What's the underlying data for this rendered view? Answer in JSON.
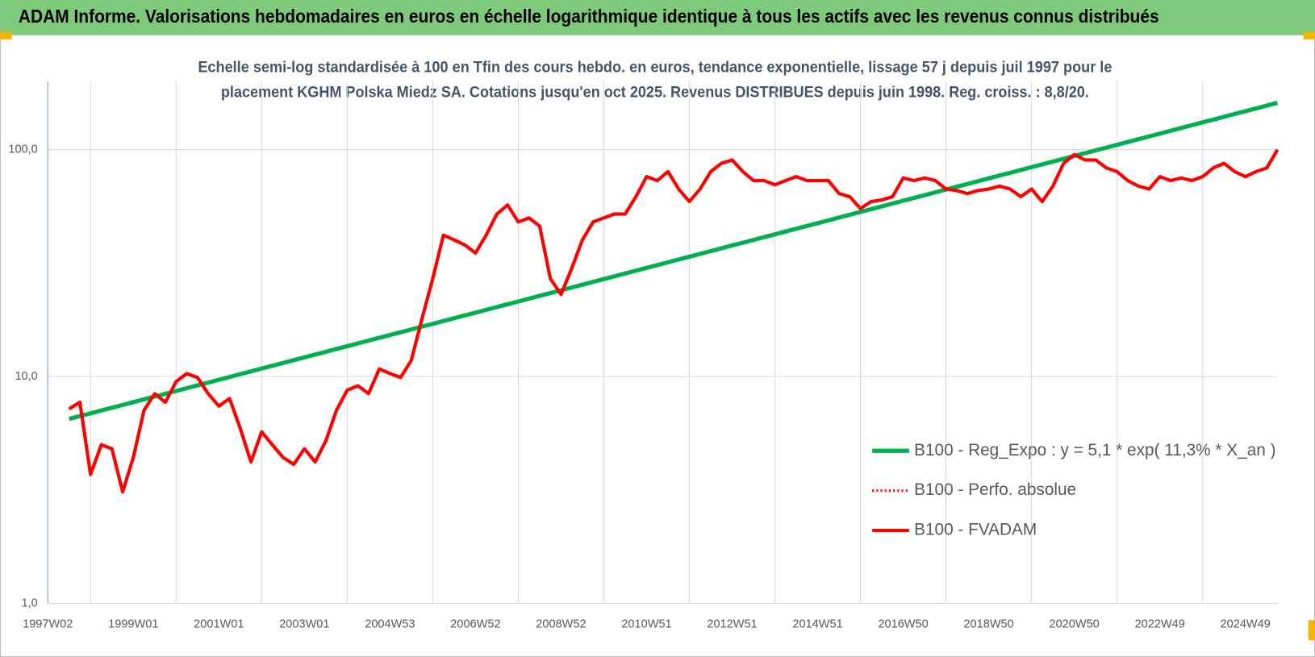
{
  "header": {
    "title": "ADAM Informe. Valorisations hebdomadaires en euros en échelle logarithmique identique à tous les actifs avec les revenus connus distribués"
  },
  "chart_data": {
    "type": "line",
    "subtitle": [
      "Echelle semi-log standardisée à 100 en Tfin des cours hebdo. en euros, tendance exponentielle, lissage 57 j depuis juil 1997 pour le",
      "placement KGHM Polska Miedz SA. Cotations jusqu'en oct 2025. Revenus DISTRIBUES depuis juin 1998. Reg. croiss. : 8,8/20."
    ],
    "log_scale": true,
    "grid": true,
    "legend": "right",
    "ylim": [
      1,
      200
    ],
    "yticks": [
      {
        "value": 1,
        "label": "1,0"
      },
      {
        "value": 10,
        "label": "10,0"
      },
      {
        "value": 100,
        "label": "100,0"
      }
    ],
    "categories": [
      "1997W02",
      null,
      null,
      null,
      null,
      null,
      null,
      null,
      "1999W01",
      null,
      null,
      null,
      null,
      null,
      null,
      null,
      "2001W01",
      null,
      null,
      null,
      null,
      null,
      null,
      null,
      "2003W01",
      null,
      null,
      null,
      null,
      null,
      null,
      null,
      "2004W53",
      null,
      null,
      null,
      null,
      null,
      null,
      null,
      "2006W52",
      null,
      null,
      null,
      null,
      null,
      null,
      null,
      "2008W52",
      null,
      null,
      null,
      null,
      null,
      null,
      null,
      "2010W51",
      null,
      null,
      null,
      null,
      null,
      null,
      null,
      "2012W51",
      null,
      null,
      null,
      null,
      null,
      null,
      null,
      "2014W51",
      null,
      null,
      null,
      null,
      null,
      null,
      null,
      "2016W50",
      null,
      null,
      null,
      null,
      null,
      null,
      null,
      "2018W50",
      null,
      null,
      null,
      null,
      null,
      null,
      null,
      "2020W50",
      null,
      null,
      null,
      null,
      null,
      null,
      null,
      "2022W49",
      null,
      null,
      null,
      null,
      null,
      null,
      null,
      "2024W49",
      null,
      null,
      null
    ],
    "series": [
      {
        "name": "B100 - Reg_Expo : y = 5,1 * exp( 11,3% *  X_an )",
        "color": "#00b050",
        "width": 5,
        "values": [
          null,
          null,
          6.5,
          6.69,
          6.88,
          7.08,
          7.28,
          7.49,
          7.71,
          7.93,
          8.16,
          8.39,
          8.63,
          8.88,
          9.14,
          9.4,
          9.67,
          9.95,
          10.24,
          10.53,
          10.84,
          11.15,
          11.47,
          11.8,
          12.14,
          12.49,
          12.85,
          13.22,
          13.6,
          13.99,
          14.39,
          14.81,
          15.23,
          15.67,
          16.12,
          16.59,
          17.06,
          17.55,
          18.06,
          18.58,
          19.11,
          19.66,
          20.23,
          20.81,
          21.41,
          22.03,
          22.66,
          23.31,
          23.98,
          24.67,
          25.38,
          26.12,
          26.87,
          27.64,
          28.44,
          29.26,
          30.1,
          30.97,
          31.86,
          32.78,
          33.72,
          34.69,
          35.69,
          36.72,
          37.78,
          38.86,
          39.98,
          41.13,
          42.32,
          43.54,
          44.79,
          46.08,
          47.41,
          48.77,
          50.18,
          51.62,
          53.11,
          54.64,
          56.21,
          57.83,
          59.5,
          61.21,
          62.97,
          64.79,
          66.65,
          68.57,
          70.55,
          72.58,
          74.67,
          76.82,
          79.03,
          81.31,
          83.65,
          86.06,
          88.54,
          91.09,
          93.71,
          96.41,
          99.19,
          102.0,
          105.0,
          108.0,
          111.1,
          114.3,
          117.6,
          121.0,
          124.5,
          128.1,
          131.8,
          135.6,
          139.5,
          143.5,
          147.6,
          151.9,
          156.3,
          160.8
        ]
      },
      {
        "name": "B100 - Perfo. absolue",
        "color": "#ff0000",
        "width": 3,
        "dash": "dotted"
      },
      {
        "name": "B100 - FVADAM",
        "color": "#ff0000",
        "width": 4,
        "values": [
          null,
          null,
          7.2,
          7.7,
          3.7,
          5.0,
          4.8,
          3.1,
          4.4,
          7.1,
          8.4,
          7.7,
          9.5,
          10.3,
          9.9,
          8.4,
          7.4,
          8.0,
          5.9,
          4.2,
          5.7,
          5.0,
          4.4,
          4.1,
          4.8,
          4.2,
          5.2,
          7.1,
          8.7,
          9.1,
          8.4,
          10.8,
          10.3,
          9.9,
          11.8,
          18,
          27,
          42,
          40,
          38,
          35,
          42,
          52,
          57,
          48,
          50,
          46,
          27,
          23,
          30,
          40,
          48,
          50,
          52,
          52,
          62,
          76,
          73,
          80,
          67,
          59,
          67,
          80,
          87,
          90,
          80,
          73,
          73,
          70,
          73,
          76,
          73,
          73,
          73,
          64,
          62,
          55,
          59,
          60,
          62,
          75,
          73,
          75,
          73,
          67,
          66,
          64,
          66,
          67,
          69,
          67,
          62,
          67,
          59,
          69,
          87,
          95,
          90,
          90,
          83,
          80,
          73,
          69,
          67,
          76,
          73,
          75,
          73,
          76,
          83,
          87,
          80,
          76,
          80,
          83,
          100
        ]
      }
    ]
  }
}
